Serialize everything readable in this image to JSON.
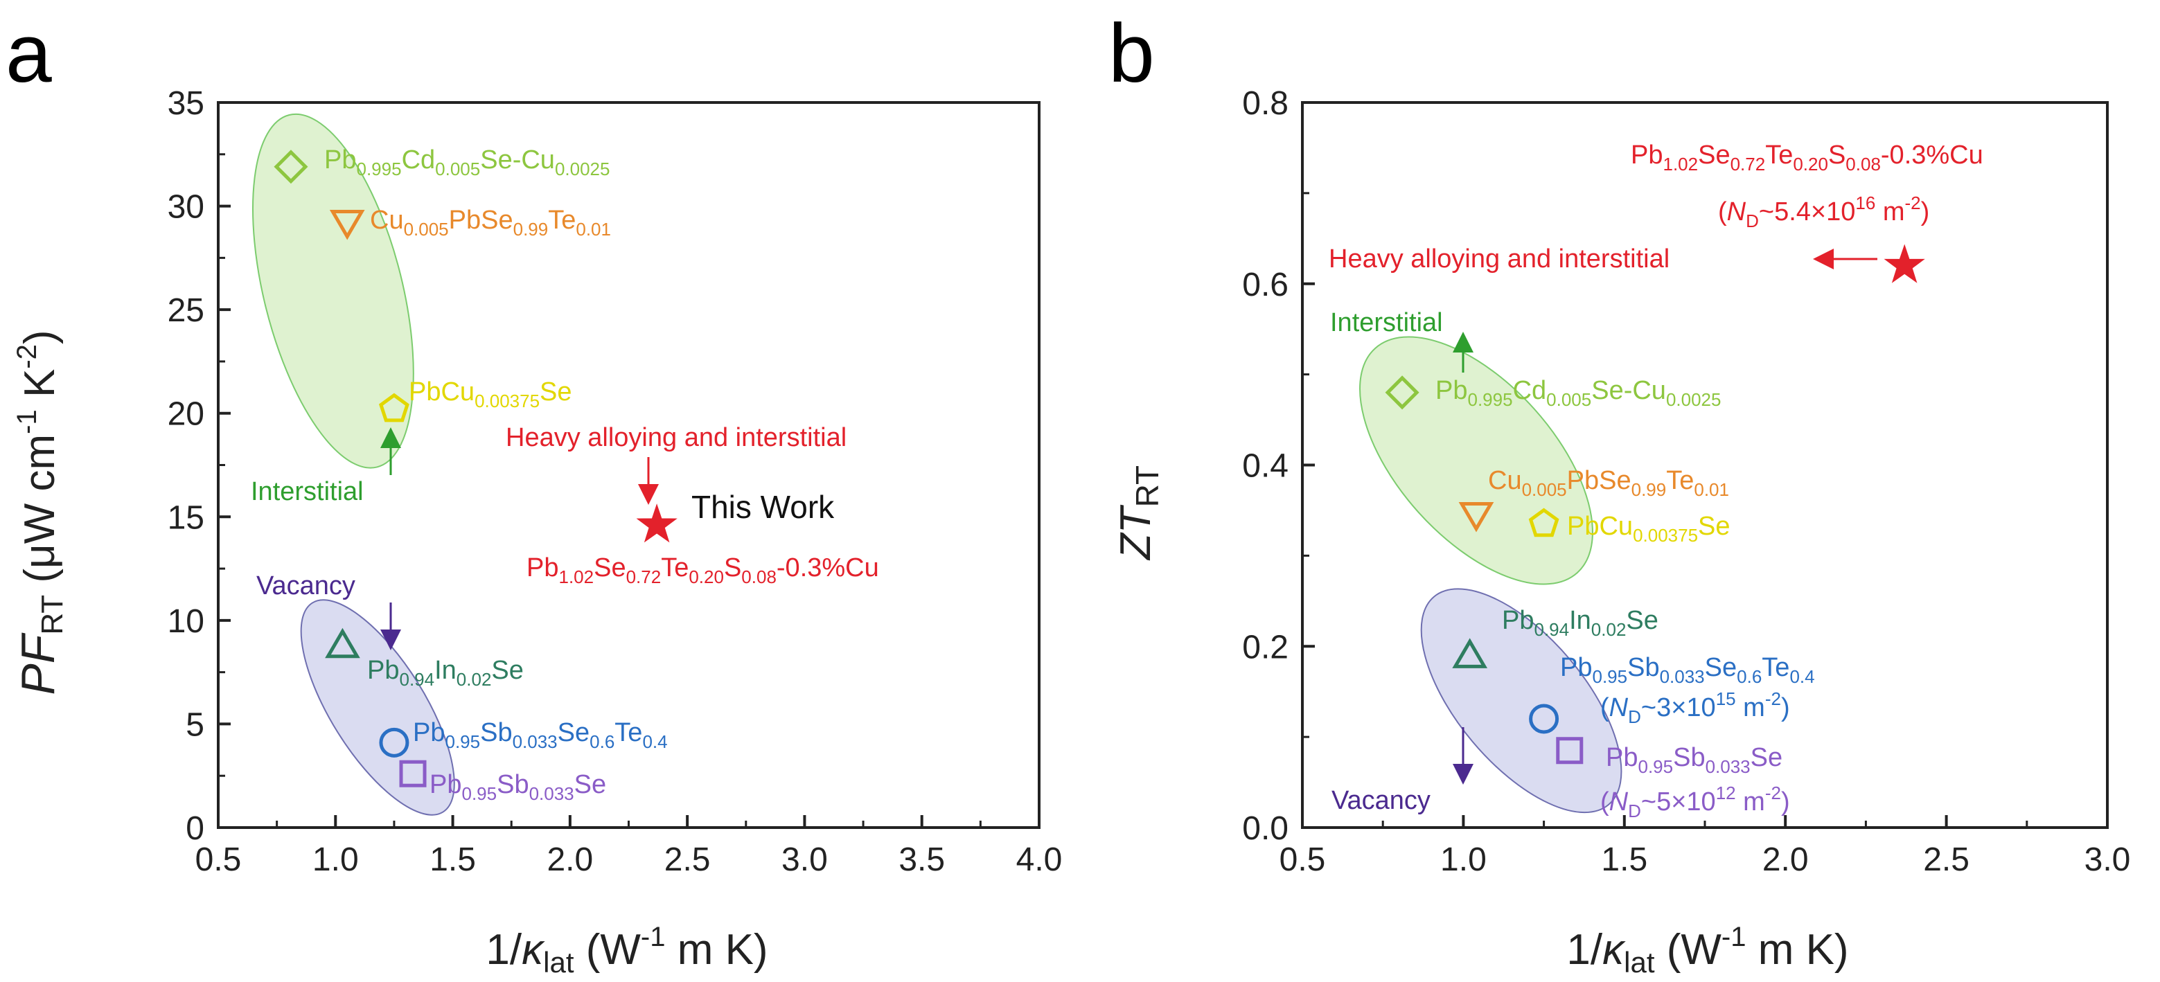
{
  "colors": {
    "green_ellipse_fill": "#d9f0c8",
    "green_ellipse_stroke": "#7ccc6e",
    "vacancy_ellipse_fill": "#d4d6ef",
    "vacancy_ellipse_stroke": "#6f6fb0",
    "diamond": "#8dc63f",
    "triangle_down": "#e8892b",
    "pentagon": "#e2d700",
    "triangle_up": "#2e7d60",
    "circle": "#2a6fc4",
    "square": "#8a5cc7",
    "star": "#e3212b",
    "interstitial_label": "#2e9e2e",
    "vacancy_label": "#4b2a8f"
  },
  "chart_data": [
    {
      "panel": "a",
      "type": "scatter",
      "xlabel": "1/κlat (W-1 m K)",
      "ylabel": "PFRT (μW cm-1 K-2)",
      "xlim": [
        0.5,
        4.0
      ],
      "ylim": [
        0,
        35
      ],
      "xticks": [
        "0.5",
        "1.0",
        "1.5",
        "2.0",
        "2.5",
        "3.0",
        "3.5",
        "4.0"
      ],
      "yticks": [
        "0",
        "5",
        "10",
        "15",
        "20",
        "25",
        "30",
        "35"
      ],
      "points": [
        {
          "marker": "diamond",
          "x": 0.81,
          "y": 31.9
        },
        {
          "marker": "triangle-down",
          "x": 1.05,
          "y": 29.2
        },
        {
          "marker": "pentagon",
          "x": 1.25,
          "y": 20.2
        },
        {
          "marker": "triangle-up",
          "x": 1.03,
          "y": 8.8
        },
        {
          "marker": "circle",
          "x": 1.25,
          "y": 4.1
        },
        {
          "marker": "square",
          "x": 1.33,
          "y": 2.6
        },
        {
          "marker": "star",
          "x": 2.37,
          "y": 14.6
        }
      ],
      "labels": {
        "diamond": {
          "main": "Pb",
          "sub1": "0.995",
          "mid1": "Cd",
          "sub2": "0.005",
          "mid2": "Se-Cu",
          "sub3": "0.0025"
        },
        "triangle_down": {
          "pre": "Cu",
          "sub1": "0.005",
          "mid1": "PbSe",
          "sub2": "0.99",
          "mid2": "Te",
          "sub3": "0.01"
        },
        "pentagon": {
          "pre": "PbCu",
          "sub1": "0.00375",
          "post": "Se"
        },
        "triangle_up": {
          "pre": "Pb",
          "sub1": "0.94",
          "mid1": "In",
          "sub2": "0.02",
          "post": "Se"
        },
        "circle": {
          "pre": "Pb",
          "sub1": "0.95",
          "mid1": "Sb",
          "sub2": "0.033",
          "mid2": "Se",
          "sub3": "0.6",
          "mid3": "Te",
          "sub4": "0.4"
        },
        "square": {
          "pre": "Pb",
          "sub1": "0.95",
          "mid1": "Sb",
          "sub2": "0.033",
          "post": "Se"
        },
        "star": {
          "pre": "Pb",
          "sub1": "1.02",
          "mid1": "Se",
          "sub2": "0.72",
          "mid2": "Te",
          "sub3": "0.20",
          "mid3": "S",
          "sub4": "0.08",
          "post": "-0.3%Cu"
        }
      },
      "annotations": {
        "interstitial": "Interstitial",
        "vacancy": "Vacancy",
        "heavy": "Heavy alloying and interstitial",
        "this_work": "This Work"
      }
    },
    {
      "panel": "b",
      "type": "scatter",
      "xlabel": "1/κlat (W-1 m K)",
      "ylabel": "ZTRT",
      "xlim": [
        0.5,
        3.0
      ],
      "ylim": [
        0,
        0.8
      ],
      "xticks": [
        "0.5",
        "1.0",
        "1.5",
        "2.0",
        "2.5",
        "3.0"
      ],
      "yticks": [
        "0.0",
        "0.2",
        "0.4",
        "0.6",
        "0.8"
      ],
      "points": [
        {
          "marker": "diamond",
          "x": 0.81,
          "y": 0.48
        },
        {
          "marker": "triangle-down",
          "x": 1.04,
          "y": 0.345
        },
        {
          "marker": "pentagon",
          "x": 1.25,
          "y": 0.335
        },
        {
          "marker": "triangle-up",
          "x": 1.02,
          "y": 0.19
        },
        {
          "marker": "circle",
          "x": 1.25,
          "y": 0.12
        },
        {
          "marker": "square",
          "x": 1.33,
          "y": 0.085
        },
        {
          "marker": "star",
          "x": 2.37,
          "y": 0.62
        }
      ],
      "annotations": {
        "interstitial": "Interstitial",
        "vacancy": "Vacancy",
        "heavy": "Heavy alloying and interstitial",
        "nd_star": {
          "pre": "(",
          "n": "N",
          "sub": "D",
          "mid": "~5.4×10",
          "sup1": "16",
          "mid2": " m",
          "sup2": "-2",
          "post": ")"
        },
        "nd_circle": {
          "pre": "(",
          "n": "N",
          "sub": "D",
          "mid": "~3×10",
          "sup1": "15",
          "mid2": " m",
          "sup2": "-2",
          "post": ")"
        },
        "nd_square": {
          "pre": "(",
          "n": "N",
          "sub": "D",
          "mid": "~5×10",
          "sup1": "12",
          "mid2": " m",
          "sup2": "-2",
          "post": ")"
        }
      }
    }
  ],
  "panels": [
    "a",
    "b"
  ],
  "axis_text": {
    "x_pre": "1/",
    "x_kappa": "κ",
    "x_sub": "lat",
    "x_mid": " (W",
    "x_sup": "-1",
    "x_post": " m K)",
    "ya_pf": "PF",
    "ya_sub": "RT",
    "ya_mid": " (μW cm",
    "ya_sup1": "-1",
    "ya_mid2": " K",
    "ya_sup2": "-2",
    "ya_post": ")",
    "yb_zt": "ZT",
    "yb_sub": "RT"
  }
}
